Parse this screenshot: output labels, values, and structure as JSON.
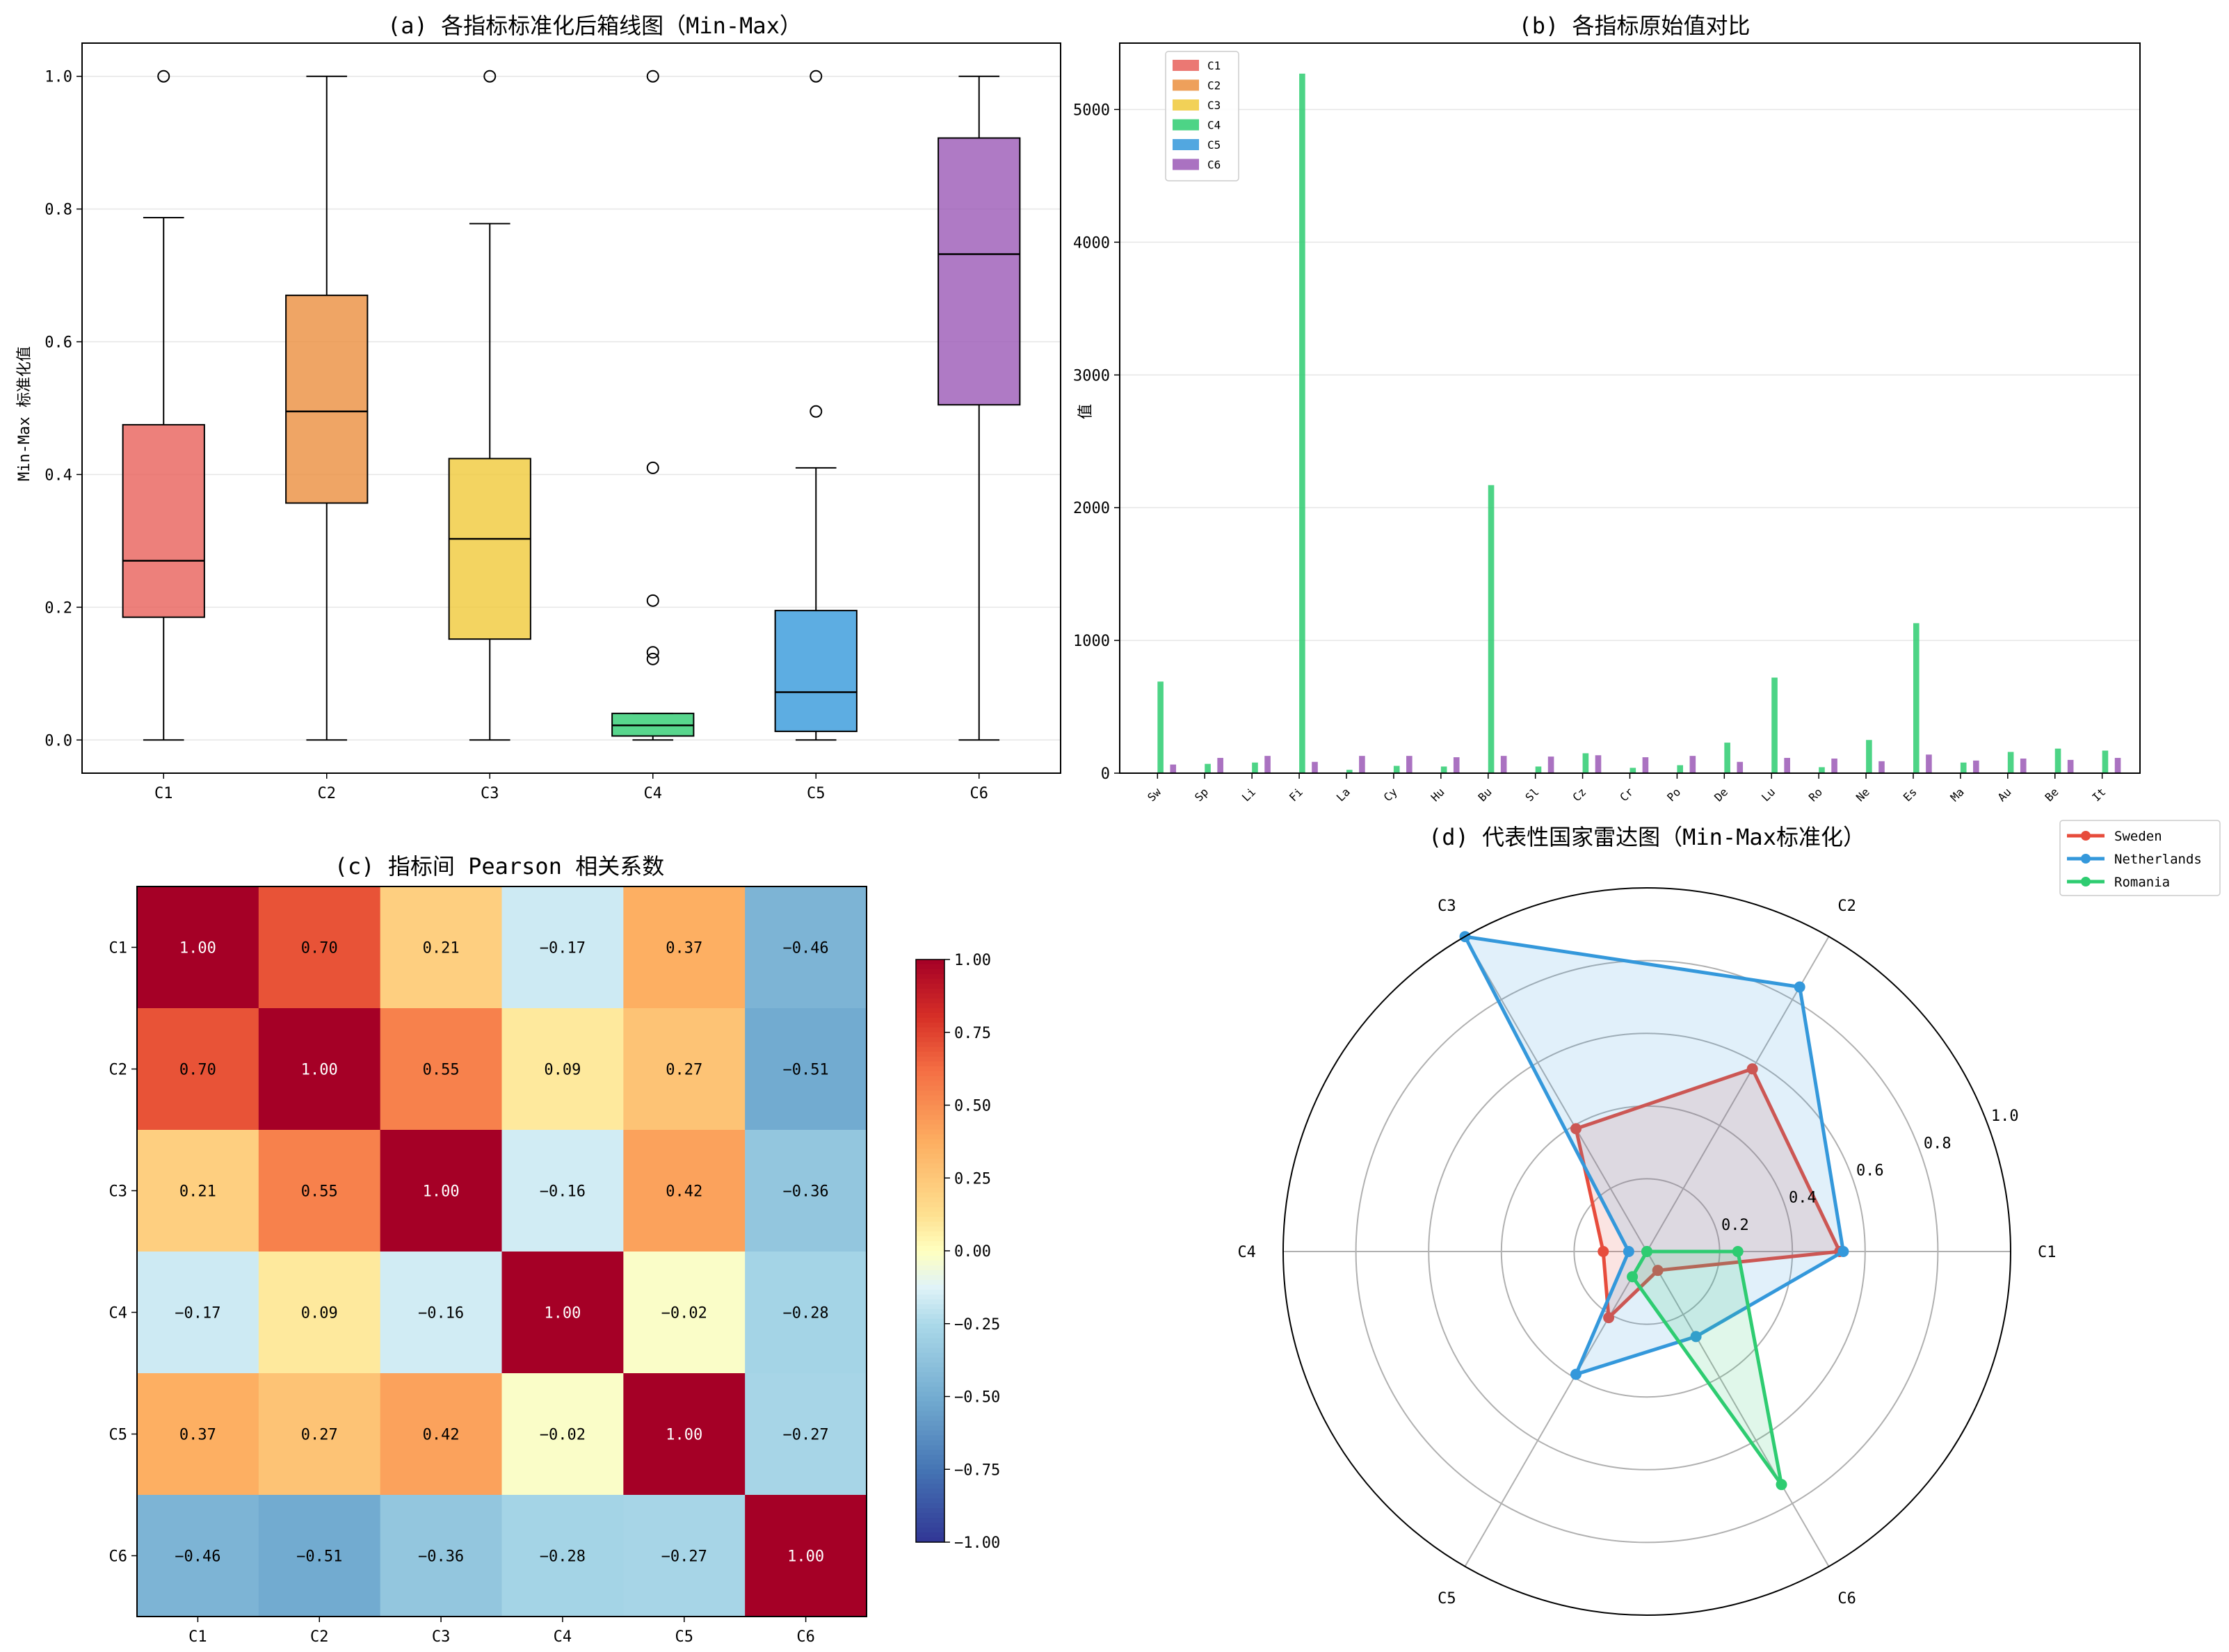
{
  "figure": {
    "panel_a": {
      "title": "(a) 各指标标准化后箱线图（Min-Max）",
      "ylabel": "Min-Max 标准化值"
    },
    "panel_b": {
      "title": "(b) 各指标原始值对比",
      "ylabel": "值"
    },
    "panel_c": {
      "title": "(c) 指标间 Pearson 相关系数"
    },
    "panel_d": {
      "title": "(d) 代表性国家雷达图（Min-Max标准化）"
    }
  },
  "chart_data": [
    {
      "id": "a",
      "type": "box",
      "title": "(a) 各指标标准化后箱线图（Min-Max）",
      "xlabel": "",
      "ylabel": "Min-Max 标准化值",
      "ylim": [
        -0.05,
        1.05
      ],
      "yticks": [
        "0.0",
        "0.2",
        "0.4",
        "0.6",
        "0.8",
        "1.0"
      ],
      "grid": "y",
      "categories": [
        "C1",
        "C2",
        "C3",
        "C4",
        "C5",
        "C6"
      ],
      "colors": [
        "#e8605a",
        "#eb8f3e",
        "#f0c93a",
        "#2ecc71",
        "#3498db",
        "#9b59b6"
      ],
      "boxes": [
        {
          "whislo": 0.0,
          "q1": 0.185,
          "med": 0.27,
          "q3": 0.475,
          "whishi": 0.787,
          "fliers": [
            1.0
          ]
        },
        {
          "whislo": 0.0,
          "q1": 0.357,
          "med": 0.495,
          "q3": 0.67,
          "whishi": 1.0,
          "fliers": []
        },
        {
          "whislo": 0.0,
          "q1": 0.152,
          "med": 0.303,
          "q3": 0.424,
          "whishi": 0.778,
          "fliers": [
            1.0
          ]
        },
        {
          "whislo": 0.0,
          "q1": 0.006,
          "med": 0.022,
          "q3": 0.04,
          "whishi": 0.04,
          "fliers": [
            1.0,
            0.41,
            0.21,
            0.132,
            0.122
          ]
        },
        {
          "whislo": 0.0,
          "q1": 0.013,
          "med": 0.072,
          "q3": 0.195,
          "whishi": 0.41,
          "fliers": [
            1.0,
            0.495
          ]
        },
        {
          "whislo": 0.0,
          "q1": 0.505,
          "med": 0.732,
          "q3": 0.907,
          "whishi": 1.0,
          "fliers": []
        }
      ]
    },
    {
      "id": "b",
      "type": "bar",
      "title": "(b) 各指标原始值对比",
      "xlabel": "",
      "ylabel": "值",
      "ylim": [
        0,
        5500
      ],
      "yticks": [
        "0",
        "1000",
        "2000",
        "3000",
        "4000",
        "5000"
      ],
      "grid": "y",
      "legend_position": "top-left",
      "categories": [
        "Sw",
        "Sp",
        "Li",
        "Fi",
        "La",
        "Cy",
        "Hu",
        "Bu",
        "Sl",
        "Cz",
        "Cr",
        "Po",
        "De",
        "Lu",
        "Ro",
        "Ne",
        "Es",
        "Ma",
        "Au",
        "Be",
        "It"
      ],
      "series": [
        {
          "name": "C1",
          "color": "#e8605a",
          "values": [
            3,
            3,
            3,
            3,
            3,
            3,
            3,
            3,
            3,
            3,
            3,
            3,
            3,
            3,
            3,
            3,
            3,
            3,
            3,
            3,
            3
          ]
        },
        {
          "name": "C2",
          "color": "#eb8f3e",
          "values": [
            3,
            3,
            3,
            3,
            3,
            3,
            3,
            3,
            3,
            3,
            3,
            3,
            3,
            3,
            3,
            3,
            3,
            3,
            3,
            3,
            3
          ]
        },
        {
          "name": "C3",
          "color": "#f0c93a",
          "values": [
            3,
            3,
            3,
            3,
            3,
            3,
            3,
            3,
            3,
            3,
            3,
            3,
            3,
            3,
            3,
            3,
            3,
            3,
            3,
            3,
            3
          ]
        },
        {
          "name": "C4",
          "color": "#2ecc71",
          "values": [
            690,
            70,
            80,
            5270,
            25,
            55,
            50,
            2170,
            50,
            150,
            40,
            60,
            230,
            720,
            45,
            250,
            1130,
            80,
            160,
            185,
            170
          ]
        },
        {
          "name": "C5",
          "color": "#3498db",
          "values": [
            3,
            3,
            3,
            3,
            3,
            3,
            3,
            3,
            3,
            3,
            3,
            3,
            3,
            3,
            3,
            3,
            3,
            3,
            3,
            3,
            3
          ]
        },
        {
          "name": "C6",
          "color": "#9b59b6",
          "values": [
            65,
            115,
            130,
            85,
            130,
            130,
            120,
            130,
            125,
            135,
            120,
            130,
            85,
            115,
            110,
            90,
            140,
            95,
            110,
            100,
            115
          ]
        }
      ]
    },
    {
      "id": "c",
      "type": "heatmap",
      "title": "(c) 指标间 Pearson 相关系数",
      "rows": [
        "C1",
        "C2",
        "C3",
        "C4",
        "C5",
        "C6"
      ],
      "cols": [
        "C1",
        "C2",
        "C3",
        "C4",
        "C5",
        "C6"
      ],
      "values": [
        [
          1.0,
          0.7,
          0.21,
          -0.17,
          0.37,
          -0.46
        ],
        [
          0.7,
          1.0,
          0.55,
          0.09,
          0.27,
          -0.51
        ],
        [
          0.21,
          0.55,
          1.0,
          -0.16,
          0.42,
          -0.36
        ],
        [
          -0.17,
          0.09,
          -0.16,
          1.0,
          -0.02,
          -0.28
        ],
        [
          0.37,
          0.27,
          0.42,
          -0.02,
          1.0,
          -0.27
        ],
        [
          -0.46,
          -0.51,
          -0.36,
          -0.28,
          -0.27,
          1.0
        ]
      ],
      "labels": [
        [
          "1.00",
          "0.70",
          "0.21",
          "−0.17",
          "0.37",
          "−0.46"
        ],
        [
          "0.70",
          "1.00",
          "0.55",
          "0.09",
          "0.27",
          "−0.51"
        ],
        [
          "0.21",
          "0.55",
          "1.00",
          "−0.16",
          "0.42",
          "−0.36"
        ],
        [
          "−0.17",
          "0.09",
          "−0.16",
          "1.00",
          "−0.02",
          "−0.28"
        ],
        [
          "0.37",
          "0.27",
          "0.42",
          "−0.02",
          "1.00",
          "−0.27"
        ],
        [
          "−0.46",
          "−0.51",
          "−0.36",
          "−0.28",
          "−0.27",
          "1.00"
        ]
      ],
      "colormap": "RdYlBu_r",
      "vmin": -1,
      "vmax": 1,
      "colorbar_ticks": [
        "1.00",
        "0.75",
        "0.50",
        "0.25",
        "0.00",
        "−0.25",
        "−0.50",
        "−0.75",
        "−1.00"
      ]
    },
    {
      "id": "d",
      "type": "radar",
      "title": "(d) 代表性国家雷达图（Min-Max标准化）",
      "axes": [
        "C1",
        "C2",
        "C3",
        "C4",
        "C5",
        "C6"
      ],
      "rlim": [
        0,
        1
      ],
      "rticks": [
        "0.2",
        "0.4",
        "0.6",
        "0.8",
        "1.0"
      ],
      "legend_position": "upper-right-outside",
      "series": [
        {
          "name": "Sweden",
          "color": "#e74c3c",
          "values": [
            0.53,
            0.58,
            0.39,
            0.12,
            0.21,
            0.06
          ]
        },
        {
          "name": "Netherlands",
          "color": "#3498db",
          "values": [
            0.54,
            0.84,
            1.0,
            0.05,
            0.39,
            0.27
          ]
        },
        {
          "name": "Romania",
          "color": "#2ecc71",
          "values": [
            0.25,
            0.0,
            0.0,
            0.0,
            0.08,
            0.74
          ]
        }
      ]
    }
  ]
}
